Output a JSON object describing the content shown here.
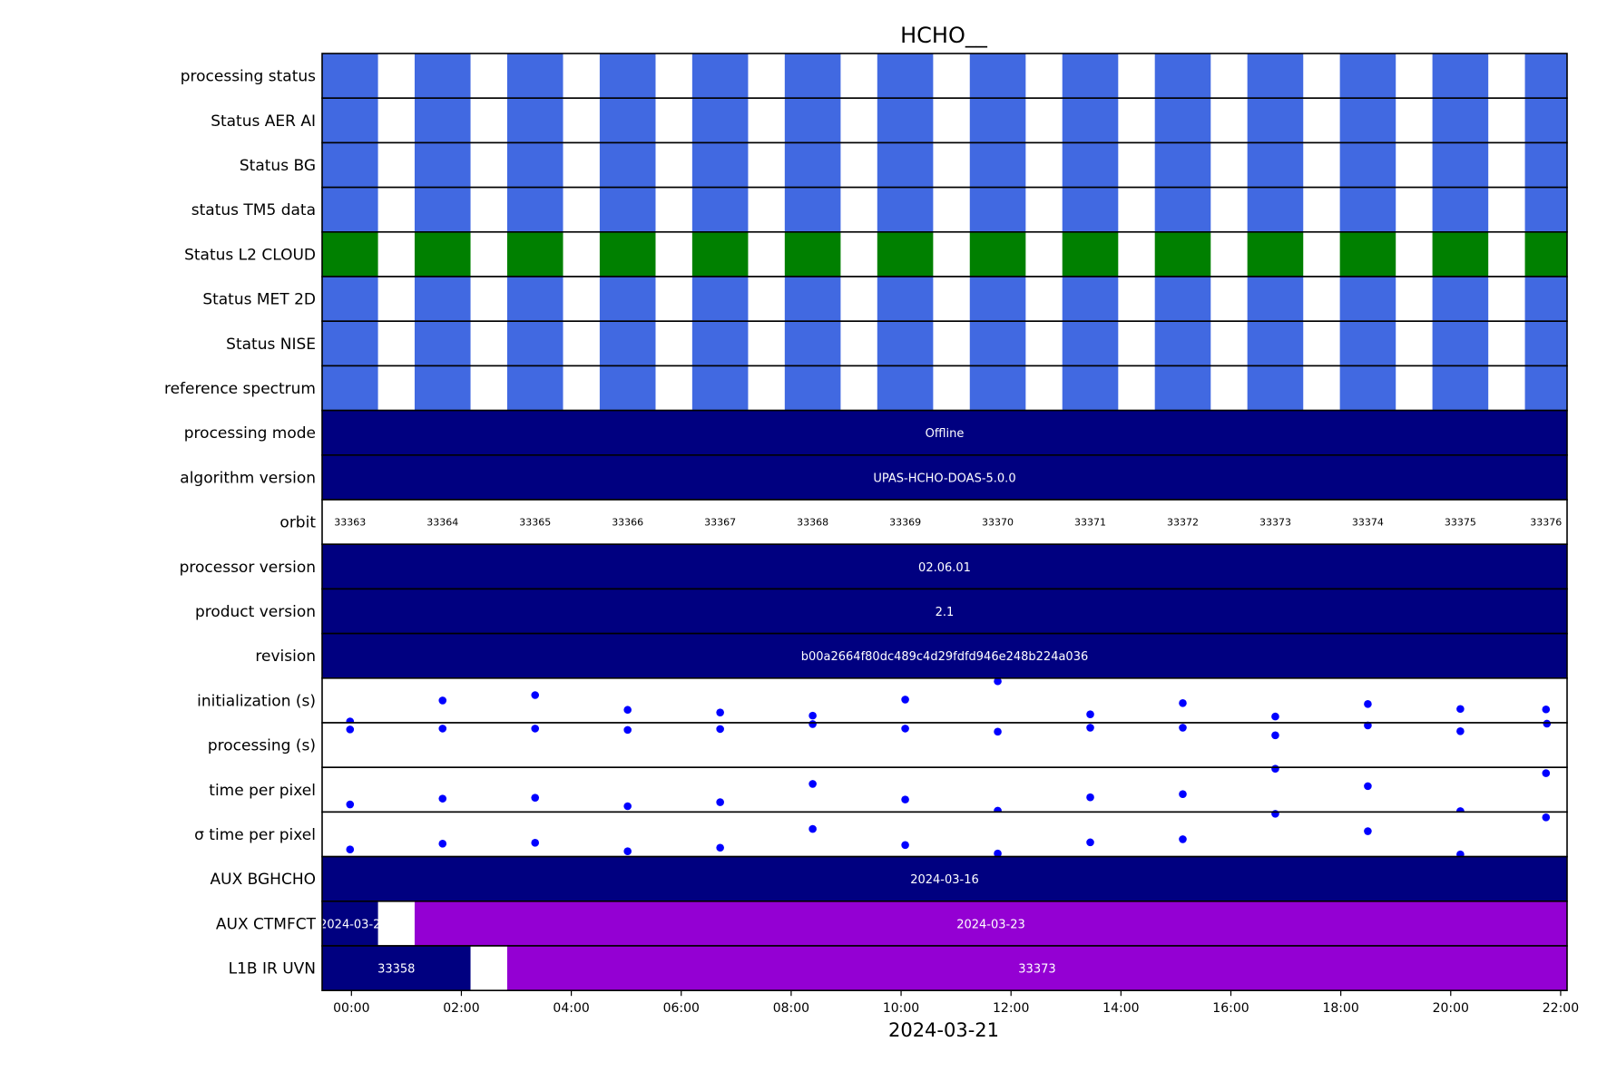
{
  "chart_data": {
    "type": "timeline",
    "title": "HCHO__",
    "xlabel": "2024-03-21",
    "x_range": [
      "2024-03-20T23:28",
      "2024-03-21T22:07"
    ],
    "x_ticks": [
      {
        "time": "00:00",
        "label": "00:00"
      },
      {
        "time": "02:00",
        "label": "02:00"
      },
      {
        "time": "04:00",
        "label": "04:00"
      },
      {
        "time": "06:00",
        "label": "06:00"
      },
      {
        "time": "08:00",
        "label": "08:00"
      },
      {
        "time": "10:00",
        "label": "10:00"
      },
      {
        "time": "12:00",
        "label": "12:00"
      },
      {
        "time": "14:00",
        "label": "14:00"
      },
      {
        "time": "16:00",
        "label": "16:00"
      },
      {
        "time": "18:00",
        "label": "18:00"
      },
      {
        "time": "20:00",
        "label": "20:00"
      },
      {
        "time": "22:00",
        "label": "22:00"
      }
    ],
    "colors": {
      "status_ok": "#4169e1",
      "cloud_ok": "#008000",
      "band": "#000080",
      "band_alt": "#9400d3",
      "dot": "#0000ff",
      "border": "#000000"
    },
    "granules": [
      {
        "start": "23:28",
        "end": "00:29"
      },
      {
        "start": "01:09",
        "end": "02:10"
      },
      {
        "start": "02:50",
        "end": "03:51"
      },
      {
        "start": "04:31",
        "end": "05:32"
      },
      {
        "start": "06:12",
        "end": "07:13"
      },
      {
        "start": "07:53",
        "end": "08:54"
      },
      {
        "start": "09:34",
        "end": "10:35"
      },
      {
        "start": "11:15",
        "end": "12:16"
      },
      {
        "start": "12:56",
        "end": "13:57"
      },
      {
        "start": "14:37",
        "end": "15:38"
      },
      {
        "start": "16:18",
        "end": "17:19"
      },
      {
        "start": "17:59",
        "end": "19:00"
      },
      {
        "start": "19:40",
        "end": "20:41"
      },
      {
        "start": "21:21",
        "end": "22:07"
      }
    ],
    "rows": [
      {
        "label": "processing status",
        "kind": "granules",
        "color": "status_ok"
      },
      {
        "label": "Status AER AI",
        "kind": "granules",
        "color": "status_ok"
      },
      {
        "label": "Status BG",
        "kind": "granules",
        "color": "status_ok"
      },
      {
        "label": "status TM5 data",
        "kind": "granules",
        "color": "status_ok"
      },
      {
        "label": "Status L2  CLOUD",
        "kind": "granules",
        "color": "cloud_ok"
      },
      {
        "label": "Status MET 2D",
        "kind": "granules",
        "color": "status_ok"
      },
      {
        "label": "Status NISE",
        "kind": "granules",
        "color": "status_ok"
      },
      {
        "label": "reference spectrum",
        "kind": "granules",
        "color": "status_ok"
      },
      {
        "label": "processing mode",
        "kind": "band",
        "segments": [
          {
            "start": "23:28",
            "end": "22:07",
            "text": "Offline",
            "color": "band"
          }
        ]
      },
      {
        "label": "algorithm version",
        "kind": "band",
        "segments": [
          {
            "start": "23:28",
            "end": "22:07",
            "text": "UPAS-HCHO-DOAS-5.0.0",
            "color": "band"
          }
        ]
      },
      {
        "label": "orbit",
        "kind": "orbit",
        "values": [
          "33363",
          "33364",
          "33365",
          "33366",
          "33367",
          "33368",
          "33369",
          "33370",
          "33371",
          "33372",
          "33373",
          "33374",
          "33375",
          "33376"
        ]
      },
      {
        "label": "processor version",
        "kind": "band",
        "segments": [
          {
            "start": "23:28",
            "end": "22:07",
            "text": "02.06.01",
            "color": "band"
          }
        ]
      },
      {
        "label": "product version",
        "kind": "band",
        "segments": [
          {
            "start": "23:28",
            "end": "22:07",
            "text": "2.1",
            "color": "band"
          }
        ]
      },
      {
        "label": "revision",
        "kind": "band",
        "segments": [
          {
            "start": "23:28",
            "end": "22:07",
            "text": "b00a2664f80dc489c4d29fdfd946e248b224a036",
            "color": "band"
          }
        ]
      },
      {
        "label": "initialization (s)",
        "kind": "scatter",
        "ylim": [
          0,
          1
        ],
        "points": [
          0.03,
          0.5,
          0.62,
          0.29,
          0.23,
          0.16,
          0.52,
          0.93,
          0.19,
          0.44,
          0.14,
          0.42,
          0.31,
          0.3
        ]
      },
      {
        "label": "processing (s)",
        "kind": "scatter",
        "ylim": [
          0,
          1
        ],
        "points": [
          0.85,
          0.87,
          0.87,
          0.84,
          0.86,
          0.97,
          0.87,
          0.8,
          0.89,
          0.89,
          0.72,
          0.94,
          0.81,
          null
        ]
      },
      {
        "label": "time per pixel",
        "kind": "scatter",
        "ylim": [
          0,
          1
        ],
        "points": [
          0.17,
          0.3,
          0.32,
          0.13,
          0.22,
          0.63,
          0.28,
          0.03,
          0.33,
          0.4,
          0.97,
          0.58,
          0.02,
          0.87
        ]
      },
      {
        "label": "σ time per pixel",
        "kind": "scatter",
        "ylim": [
          0,
          1
        ],
        "points": [
          0.16,
          0.29,
          0.31,
          0.12,
          0.2,
          0.62,
          0.26,
          0.07,
          0.32,
          0.39,
          0.96,
          0.57,
          0.05,
          0.88
        ]
      },
      {
        "label": "AUX BGHCHO",
        "kind": "band",
        "segments": [
          {
            "start": "23:28",
            "end": "22:07",
            "text": "2024-03-16",
            "color": "band"
          }
        ]
      },
      {
        "label": "AUX CTMFCT",
        "kind": "band",
        "segments": [
          {
            "start": "23:28",
            "end": "00:29",
            "text": "2024-03-2",
            "color": "band"
          },
          {
            "start": "01:09",
            "end": "22:07",
            "text": "2024-03-23",
            "color": "band_alt"
          }
        ]
      },
      {
        "label": "L1B IR UVN",
        "kind": "band",
        "segments": [
          {
            "start": "23:28",
            "end": "02:10",
            "text": "33358",
            "color": "band"
          },
          {
            "start": "02:50",
            "end": "22:07",
            "text": "33373",
            "color": "band_alt"
          }
        ]
      }
    ],
    "extra_points": [
      {
        "row": 15,
        "time": "21:45",
        "value": 0.98
      }
    ]
  }
}
